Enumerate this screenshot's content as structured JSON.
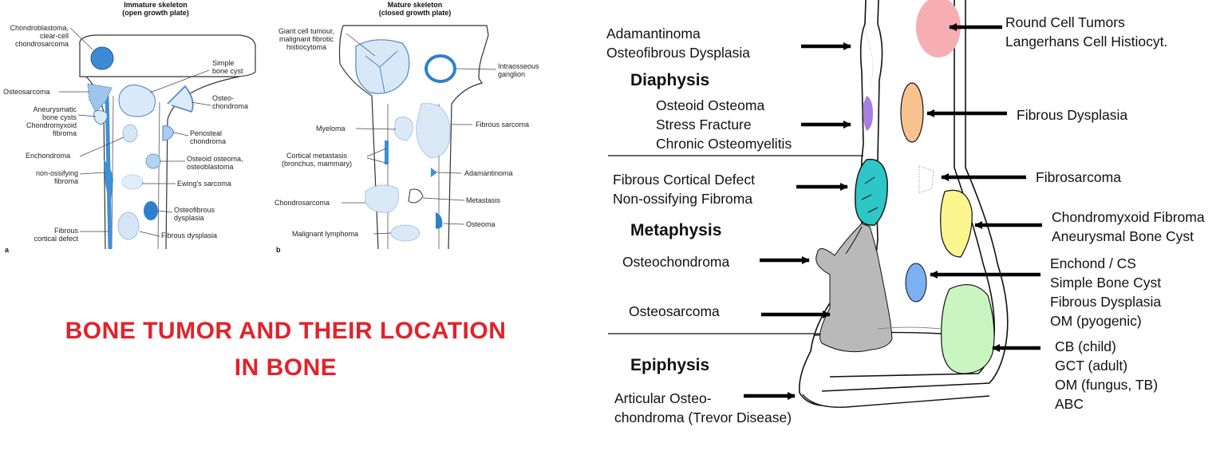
{
  "title_lines": [
    "BONE TUMOR AND THEIR LOCATION",
    "IN  BONE"
  ],
  "panel_a": {
    "heading": [
      "Immature skeleton",
      "(open growth plate)"
    ],
    "letter": "a",
    "labels": {
      "chondroblastoma": [
        "Chondroblastoma,",
        "clear-cell",
        "chondrosarcoma"
      ],
      "simple_cyst": [
        "Simple",
        "bone cyst"
      ],
      "osteosarcoma": [
        "Osteosarcoma"
      ],
      "osteochondroma": [
        "Osteo-",
        "chondroma"
      ],
      "abc": [
        "Aneurysmatic",
        "bone cysts",
        "Chondromyxoid",
        "fibroma"
      ],
      "periosteal": [
        "Periosteal",
        "chondroma"
      ],
      "enchondroma": [
        "Enchondroma"
      ],
      "osteoid": [
        "Osteoid osteoma,",
        "osteoblastoma"
      ],
      "nof": [
        "non-ossifying",
        "fibroma"
      ],
      "ewing": [
        "Ewing's sarcoma"
      ],
      "osteofibrous": [
        "Osteofibrous",
        "dysplasia"
      ],
      "fcd": [
        "Fibrous",
        "cortical defect"
      ],
      "fd": [
        "Fibrous dysplasia"
      ]
    }
  },
  "panel_b": {
    "heading": [
      "Mature skeleton",
      "(closed growth plate)"
    ],
    "letter": "b",
    "labels": {
      "gct": [
        "Giant cell tumour,",
        "malignant fibrotic",
        "histiocytoma"
      ],
      "ganglion": [
        "Intraosseous",
        "ganglion"
      ],
      "myeloma": [
        "Myeloma"
      ],
      "fibrous_sarcoma": [
        "Fibrous sarcoma"
      ],
      "metastasis_cortical": [
        "Cortical metastasis",
        "(bronchus, mammary)"
      ],
      "adamantinoma": [
        "Adamantinoma"
      ],
      "chondrosarcoma": [
        "Chondrosarcoma"
      ],
      "metastasis": [
        "Metastasis"
      ],
      "osteoma": [
        "Osteoma"
      ],
      "lymphoma": [
        "Malignant lymphoma"
      ]
    }
  },
  "right": {
    "sections": {
      "diaphysis": "Diaphysis",
      "metaphysis": "Metaphysis",
      "epiphysis": "Epiphysis"
    },
    "left_labels": {
      "adamantinoma": [
        "Adamantinoma",
        "Osteofibrous Dysplasia"
      ],
      "osteoid": [
        "Osteoid Osteoma",
        "Stress Fracture",
        "Chronic Osteomyelitis"
      ],
      "fcd": [
        "Fibrous Cortical Defect",
        "Non-ossifying Fibroma"
      ],
      "osteochondroma": [
        "Osteochondroma"
      ],
      "osteosarcoma": [
        "Osteosarcoma"
      ],
      "trevor": [
        "Articular Osteo-",
        "chondroma (Trevor Disease)"
      ]
    },
    "right_labels": {
      "round_cell": [
        "Round Cell Tumors",
        "Langerhans Cell Histiocyt."
      ],
      "fd": [
        "Fibrous Dysplasia"
      ],
      "fibrosarcoma": [
        "Fibrosarcoma"
      ],
      "cmf": [
        "Chondromyxoid Fibroma",
        "Aneurysmal Bone Cyst"
      ],
      "enchond": [
        "Enchond / CS",
        "Simple Bone Cyst",
        "Fibrous Dysplasia",
        "OM (pyogenic)"
      ],
      "cb": [
        "CB (child)",
        "GCT (adult)",
        "OM (fungus, TB)",
        "ABC"
      ]
    },
    "colors": {
      "round_cell": "#f6aeb2",
      "osteoid": "#a77fe0",
      "fd": "#f8c38f",
      "fcd": "#2ec6c6",
      "cmf": "#fbf68e",
      "enchond": "#7bb0f3",
      "cb": "#c8f5c0",
      "osteosarcoma": "#b9b9b9"
    }
  }
}
